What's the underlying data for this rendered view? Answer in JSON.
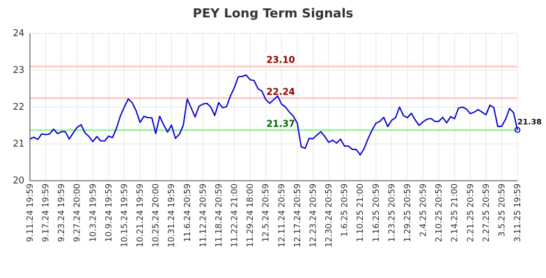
{
  "chart_data": {
    "type": "line",
    "title": "PEY Long Term Signals",
    "ylim": [
      20,
      24
    ],
    "yticks": [
      20,
      21,
      22,
      23,
      24
    ],
    "x_tick_labels": [
      "9.11.24 19:59",
      "9.17.24 19:59",
      "9.23.24 19:59",
      "9.27.24 20:00",
      "10.3.24 19:59",
      "10.9.24 19:59",
      "10.15.24 19:59",
      "10.21.24 19:59",
      "10.25.24 20:00",
      "10.31.24 19:59",
      "11.6.24 20:59",
      "11.12.24 20:59",
      "11.18.24 20:59",
      "11.22.24 21:00",
      "11.29.24 18:00",
      "12.5.24 20:59",
      "12.11.24 20:59",
      "12.17.24 20:59",
      "12.23.24 20:59",
      "12.30.24 20:59",
      "1.6.25 20:59",
      "1.10.25 21:00",
      "1.16.25 20:59",
      "1.23.25 20:59",
      "1.29.25 20:59",
      "2.4.25 20:59",
      "2.10.25 20:59",
      "2.14.25 21:00",
      "2.21.25 20:59",
      "2.27.25 20:59",
      "3.5.25 20:59",
      "3.11.25 19:59"
    ],
    "grid": true,
    "series": [
      {
        "color": "#0000cc",
        "values": [
          21.13,
          21.18,
          21.12,
          21.27,
          21.25,
          21.27,
          21.4,
          21.28,
          21.33,
          21.33,
          21.13,
          21.3,
          21.45,
          21.52,
          21.3,
          21.2,
          21.06,
          21.2,
          21.08,
          21.08,
          21.21,
          21.17,
          21.42,
          21.76,
          22.0,
          22.22,
          22.12,
          21.9,
          21.58,
          21.75,
          21.71,
          21.71,
          21.28,
          21.75,
          21.52,
          21.32,
          21.51,
          21.15,
          21.26,
          21.5,
          22.22,
          21.98,
          21.73,
          22.02,
          22.08,
          22.1,
          22.0,
          21.77,
          22.12,
          21.98,
          22.01,
          22.3,
          22.53,
          22.82,
          22.83,
          22.87,
          22.74,
          22.72,
          22.5,
          22.43,
          22.2,
          22.1,
          22.2,
          22.3,
          22.08,
          22.0,
          21.86,
          21.75,
          21.56,
          20.92,
          20.88,
          21.15,
          21.14,
          21.24,
          21.33,
          21.2,
          21.04,
          21.1,
          21.02,
          21.13,
          20.94,
          20.94,
          20.85,
          20.85,
          20.7,
          20.87,
          21.14,
          21.37,
          21.56,
          21.61,
          21.72,
          21.47,
          21.64,
          21.71,
          22.0,
          21.77,
          21.71,
          21.83,
          21.65,
          21.5,
          21.6,
          21.67,
          21.69,
          21.61,
          21.61,
          21.72,
          21.57,
          21.74,
          21.68,
          21.97,
          22.0,
          21.95,
          21.82,
          21.86,
          21.93,
          21.86,
          21.79,
          22.05,
          21.98,
          21.47,
          21.48,
          21.67,
          21.96,
          21.85,
          21.38
        ]
      }
    ],
    "horizontal_lines": [
      {
        "value": 23.1,
        "label": "23.10",
        "line_color": "#ffbbbb",
        "label_color": "#8b0000"
      },
      {
        "value": 22.24,
        "label": "22.24",
        "line_color": "#ffbbbb",
        "label_color": "#8b0000"
      },
      {
        "value": 21.37,
        "label": "21.37",
        "line_color": "#88ee88",
        "label_color": "#006400"
      }
    ],
    "end_label": "21.38"
  }
}
